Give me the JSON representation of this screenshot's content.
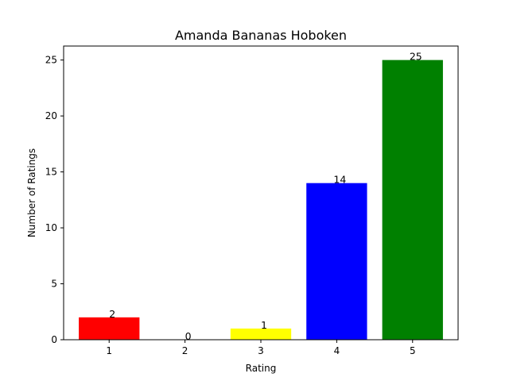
{
  "chart_data": {
    "type": "bar",
    "title": "Amanda Bananas Hoboken",
    "xlabel": "Rating",
    "ylabel": "Number of Ratings",
    "categories": [
      "1",
      "2",
      "3",
      "4",
      "5"
    ],
    "values": [
      2,
      0,
      1,
      14,
      25
    ],
    "data_labels": [
      "2",
      "0",
      "1",
      "14",
      "25"
    ],
    "colors": [
      "#ff0000",
      "#ff0000",
      "#ffff00",
      "#0000ff",
      "#008000"
    ],
    "ylim": [
      0,
      26.25
    ],
    "yticks": [
      0,
      5,
      10,
      15,
      20,
      25
    ],
    "grid": false
  }
}
